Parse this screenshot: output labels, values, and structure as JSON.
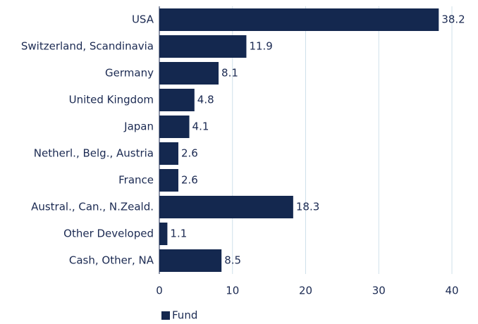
{
  "chart_data": {
    "type": "bar",
    "orientation": "horizontal",
    "categories": [
      "USA",
      "Switzerland, Scandinavia",
      "Germany",
      "United Kingdom",
      "Japan",
      "Netherl., Belg., Austria",
      "France",
      "Austral., Can., N.Zeald.",
      "Other Developed",
      "Cash, Other, NA"
    ],
    "series": [
      {
        "name": "Fund",
        "color": "#14284f",
        "values": [
          38.2,
          11.9,
          8.1,
          4.8,
          4.1,
          2.6,
          2.6,
          18.3,
          1.1,
          8.5
        ]
      }
    ],
    "xlim": [
      0,
      40
    ],
    "xticks": [
      0,
      10,
      20,
      30,
      40
    ],
    "grid": true,
    "legend": "bottom-left"
  }
}
